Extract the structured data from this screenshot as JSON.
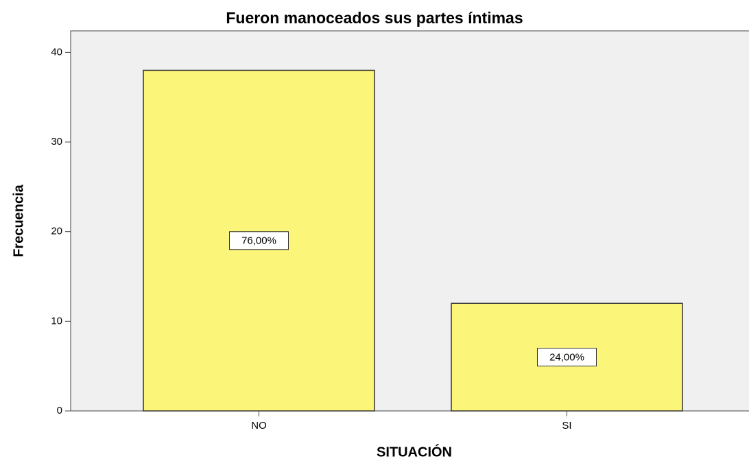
{
  "chart_data": {
    "type": "bar",
    "title": "Fueron manoceados sus partes íntimas",
    "x_label": "SITUACIÓN",
    "y_label": "Frecuencia",
    "categories": [
      "NO",
      "SI"
    ],
    "values": [
      38,
      12
    ],
    "bar_labels": [
      "76,00%",
      "24,00%"
    ],
    "color": "#fbf67a",
    "ylim": [
      0,
      42.4
    ],
    "yticks": [
      0,
      10,
      20,
      30,
      40
    ]
  }
}
